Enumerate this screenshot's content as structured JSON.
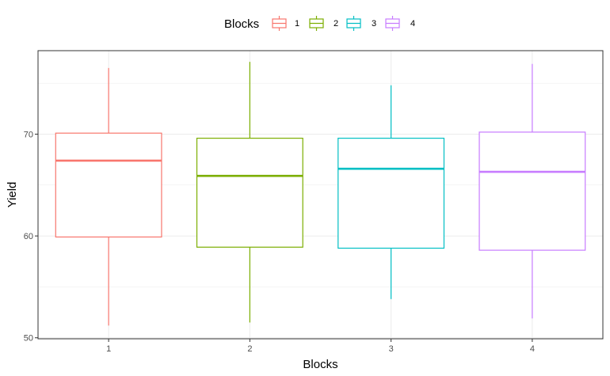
{
  "chart_data": {
    "type": "boxplot",
    "xlabel": "Blocks",
    "ylabel": "Yield",
    "categories": [
      "1",
      "2",
      "3",
      "4"
    ],
    "ylim": [
      49.9,
      78.2
    ],
    "y_ticks": [
      50,
      60,
      70
    ],
    "grid": true,
    "legend": {
      "title": "Blocks",
      "position": "top",
      "entries": [
        "1",
        "2",
        "3",
        "4"
      ]
    },
    "colors": [
      "#F8766D",
      "#7CAE00",
      "#00BFC4",
      "#C77CFF"
    ],
    "series": [
      {
        "name": "1",
        "min": 51.2,
        "q1": 59.9,
        "median": 67.4,
        "q3": 70.1,
        "max": 76.5
      },
      {
        "name": "2",
        "min": 51.5,
        "q1": 58.9,
        "median": 65.9,
        "q3": 69.6,
        "max": 77.1
      },
      {
        "name": "3",
        "min": 53.8,
        "q1": 58.8,
        "median": 66.6,
        "q3": 69.6,
        "max": 74.8
      },
      {
        "name": "4",
        "min": 51.9,
        "q1": 58.6,
        "median": 66.3,
        "q3": 70.2,
        "max": 76.9
      }
    ]
  }
}
